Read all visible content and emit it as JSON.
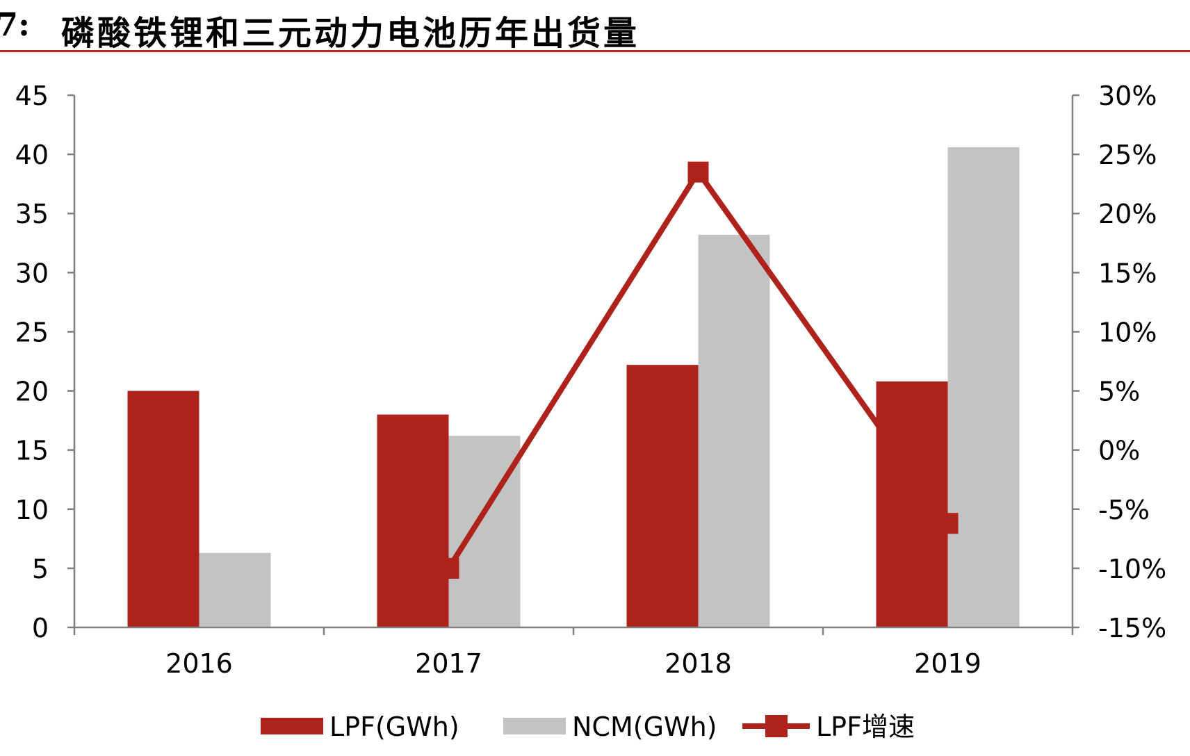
{
  "title": {
    "prefix": "7:",
    "text": "磷酸铁锂和三元动力电池历年出货量"
  },
  "colors": {
    "accent": "#b22a22",
    "lpf": "#ae221c",
    "ncm": "#c3c3c3",
    "axis": "#7f7f7f"
  },
  "chart_data": {
    "type": "bar",
    "categories": [
      "2016",
      "2017",
      "2018",
      "2019"
    ],
    "series": [
      {
        "name": "LPF(GWh)",
        "type": "bar",
        "axis": "left",
        "values": [
          20.0,
          18.0,
          22.2,
          20.8
        ]
      },
      {
        "name": "NCM(GWh)",
        "type": "bar",
        "axis": "left",
        "values": [
          6.3,
          16.2,
          33.2,
          40.6
        ]
      },
      {
        "name": "LPF增速",
        "type": "line",
        "axis": "right",
        "values": [
          null,
          -0.1,
          0.235,
          -0.062
        ]
      }
    ],
    "ylim": [
      0,
      45
    ],
    "y_ticks": [
      "0",
      "5",
      "10",
      "15",
      "20",
      "25",
      "30",
      "35",
      "40",
      "45"
    ],
    "y2lim": [
      -0.15,
      0.3
    ],
    "y2_ticks": [
      "-15%",
      "-10%",
      "-5%",
      "0%",
      "5%",
      "10%",
      "15%",
      "20%",
      "25%",
      "30%"
    ],
    "grid": false,
    "legend_position": "bottom"
  }
}
